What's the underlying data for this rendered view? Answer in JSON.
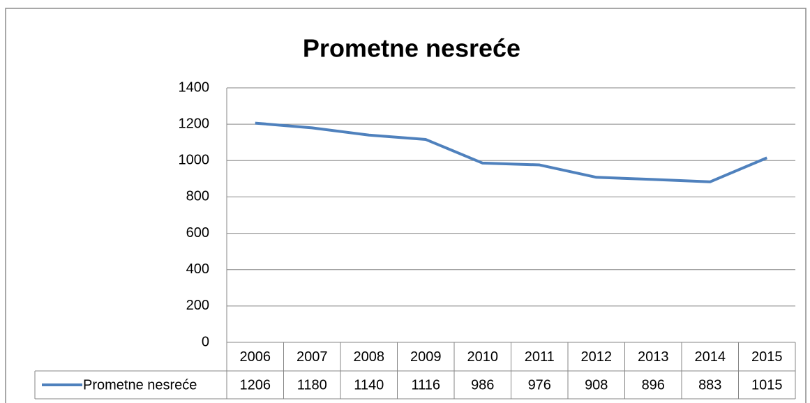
{
  "chart_data": {
    "type": "line",
    "title": "Prometne nesreće",
    "categories": [
      "2006",
      "2007",
      "2008",
      "2009",
      "2010",
      "2011",
      "2012",
      "2013",
      "2014",
      "2015"
    ],
    "series": [
      {
        "name": "Prometne nesreće",
        "color": "#4f81bd",
        "values": [
          1206,
          1180,
          1140,
          1116,
          986,
          976,
          908,
          896,
          883,
          1015
        ]
      }
    ],
    "ylim": [
      0,
      1400
    ],
    "yticks": [
      0,
      200,
      400,
      600,
      800,
      1000,
      1200,
      1400
    ],
    "grid": true,
    "data_table": true
  }
}
